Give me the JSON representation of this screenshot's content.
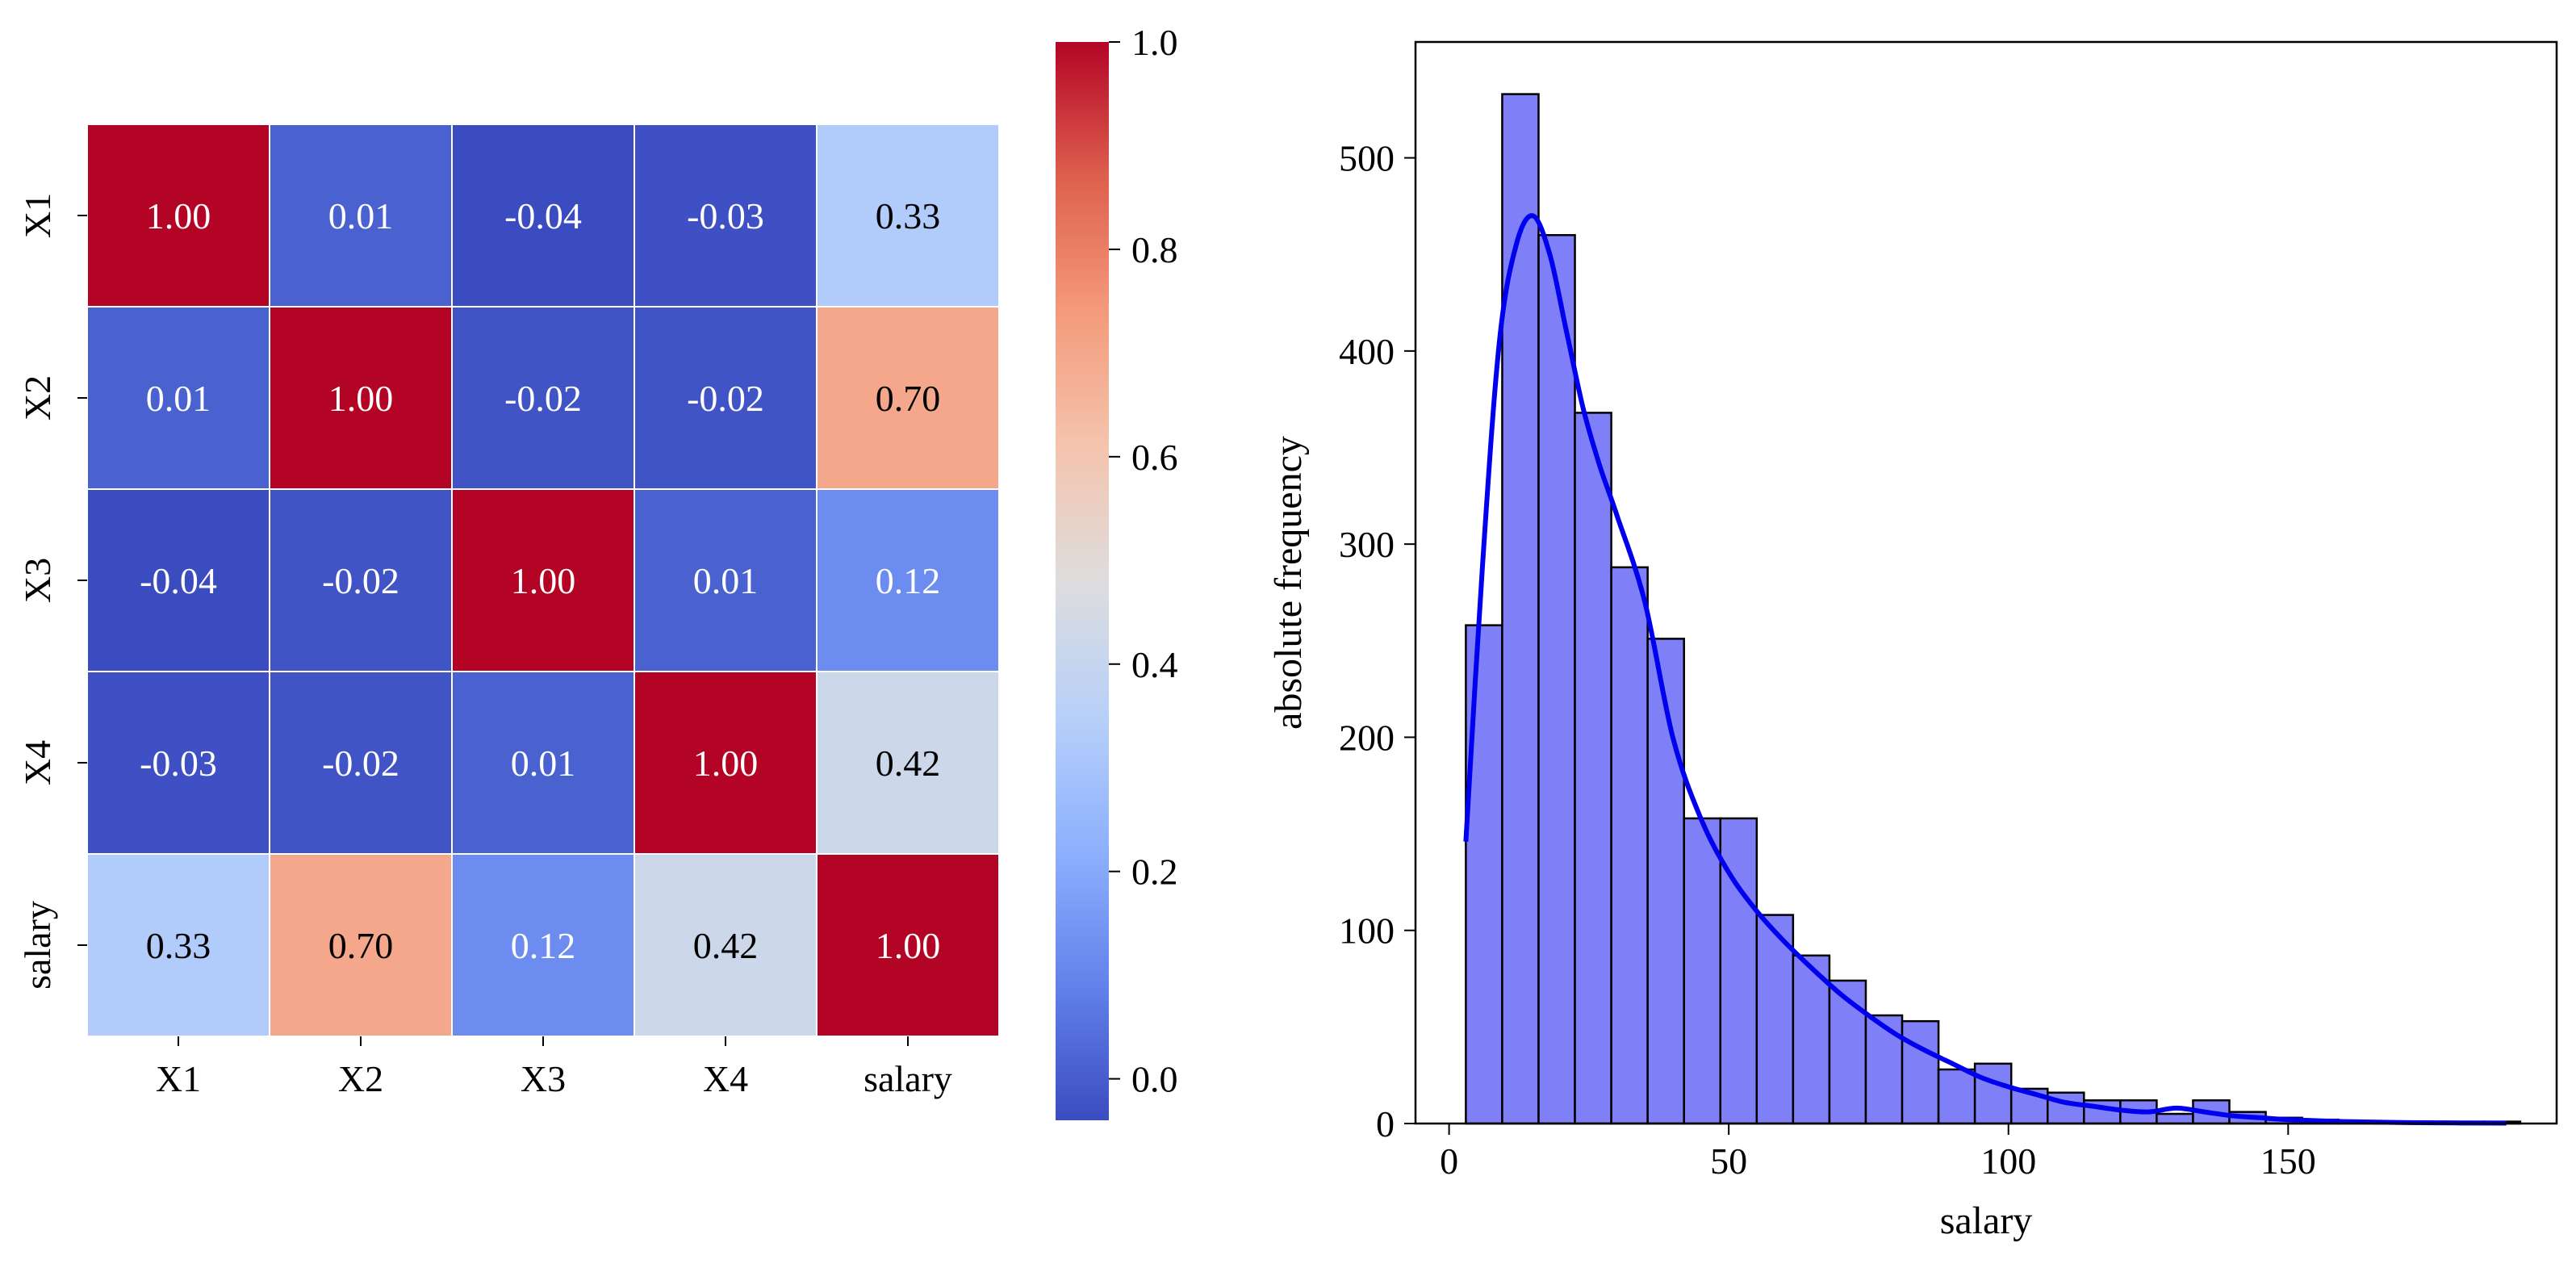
{
  "chart_data": [
    {
      "type": "heatmap",
      "title": "",
      "rows": [
        "X1",
        "X2",
        "X3",
        "X4",
        "salary"
      ],
      "columns": [
        "X1",
        "X2",
        "X3",
        "X4",
        "salary"
      ],
      "values": [
        [
          1.0,
          0.01,
          -0.04,
          -0.03,
          0.33
        ],
        [
          0.01,
          1.0,
          -0.02,
          -0.02,
          0.7
        ],
        [
          -0.04,
          -0.02,
          1.0,
          0.01,
          0.12
        ],
        [
          -0.03,
          -0.02,
          0.01,
          1.0,
          0.42
        ],
        [
          0.33,
          0.7,
          0.12,
          0.42,
          1.0
        ]
      ],
      "cell_labels": [
        [
          "1.00",
          "0.01",
          "-0.04",
          "-0.03",
          "0.33"
        ],
        [
          "0.01",
          "1.00",
          "-0.02",
          "-0.02",
          "0.70"
        ],
        [
          "-0.04",
          "-0.02",
          "1.00",
          "0.01",
          "0.12"
        ],
        [
          "-0.03",
          "-0.02",
          "0.01",
          "1.00",
          "0.42"
        ],
        [
          "0.33",
          "0.70",
          "0.12",
          "0.42",
          "1.00"
        ]
      ],
      "colormap": "coolwarm",
      "colorbar": {
        "vmin": -0.04,
        "vmax": 1.0,
        "ticks": [
          0.0,
          0.2,
          0.4,
          0.6,
          0.8,
          1.0
        ],
        "tick_labels": [
          "0.0",
          "0.2",
          "0.4",
          "0.6",
          "0.8",
          "1.0"
        ]
      }
    },
    {
      "type": "histogram",
      "title": "",
      "xlabel": "salary",
      "ylabel": "absolute frequency",
      "xlim": [
        -6,
        198
      ],
      "ylim": [
        0,
        560
      ],
      "xticks": [
        0,
        50,
        100,
        150
      ],
      "xtick_labels": [
        "0",
        "50",
        "100",
        "150"
      ],
      "yticks": [
        0,
        100,
        200,
        300,
        400,
        500
      ],
      "ytick_labels": [
        "0",
        "100",
        "200",
        "300",
        "400",
        "500"
      ],
      "bin_edges": [
        3,
        9.5,
        16,
        22.5,
        29,
        35.5,
        42,
        48.5,
        55,
        61.5,
        68,
        74.5,
        81,
        87.5,
        94,
        100.5,
        107,
        113.5,
        120,
        126.5,
        133,
        139.5,
        146,
        152.5,
        159,
        165.5,
        172,
        178.5,
        185,
        191.5
      ],
      "counts": [
        258,
        533,
        460,
        368,
        288,
        251,
        158,
        158,
        108,
        87,
        74,
        56,
        53,
        28,
        31,
        18,
        16,
        12,
        12,
        5,
        12,
        6,
        3,
        2,
        1,
        1,
        1,
        1,
        1
      ],
      "bar_color": "#7f7ff7",
      "kde": {
        "color": "#0000ee",
        "x": [
          3,
          6,
          9,
          12,
          15,
          18,
          21,
          24,
          27,
          30,
          35,
          40,
          45,
          50,
          55,
          60,
          65,
          70,
          75,
          80,
          85,
          90,
          95,
          100,
          105,
          110,
          115,
          120,
          125,
          130,
          135,
          140,
          145,
          150,
          160,
          170,
          180,
          189
        ],
        "y": [
          146,
          290,
          405,
          455,
          470,
          450,
          410,
          370,
          340,
          315,
          270,
          200,
          158,
          130,
          110,
          94,
          80,
          67,
          56,
          46,
          38,
          31,
          24,
          19,
          15,
          11,
          9,
          7,
          6,
          8,
          6,
          4,
          3,
          2,
          1,
          0.5,
          0.3,
          0.2
        ]
      }
    }
  ]
}
